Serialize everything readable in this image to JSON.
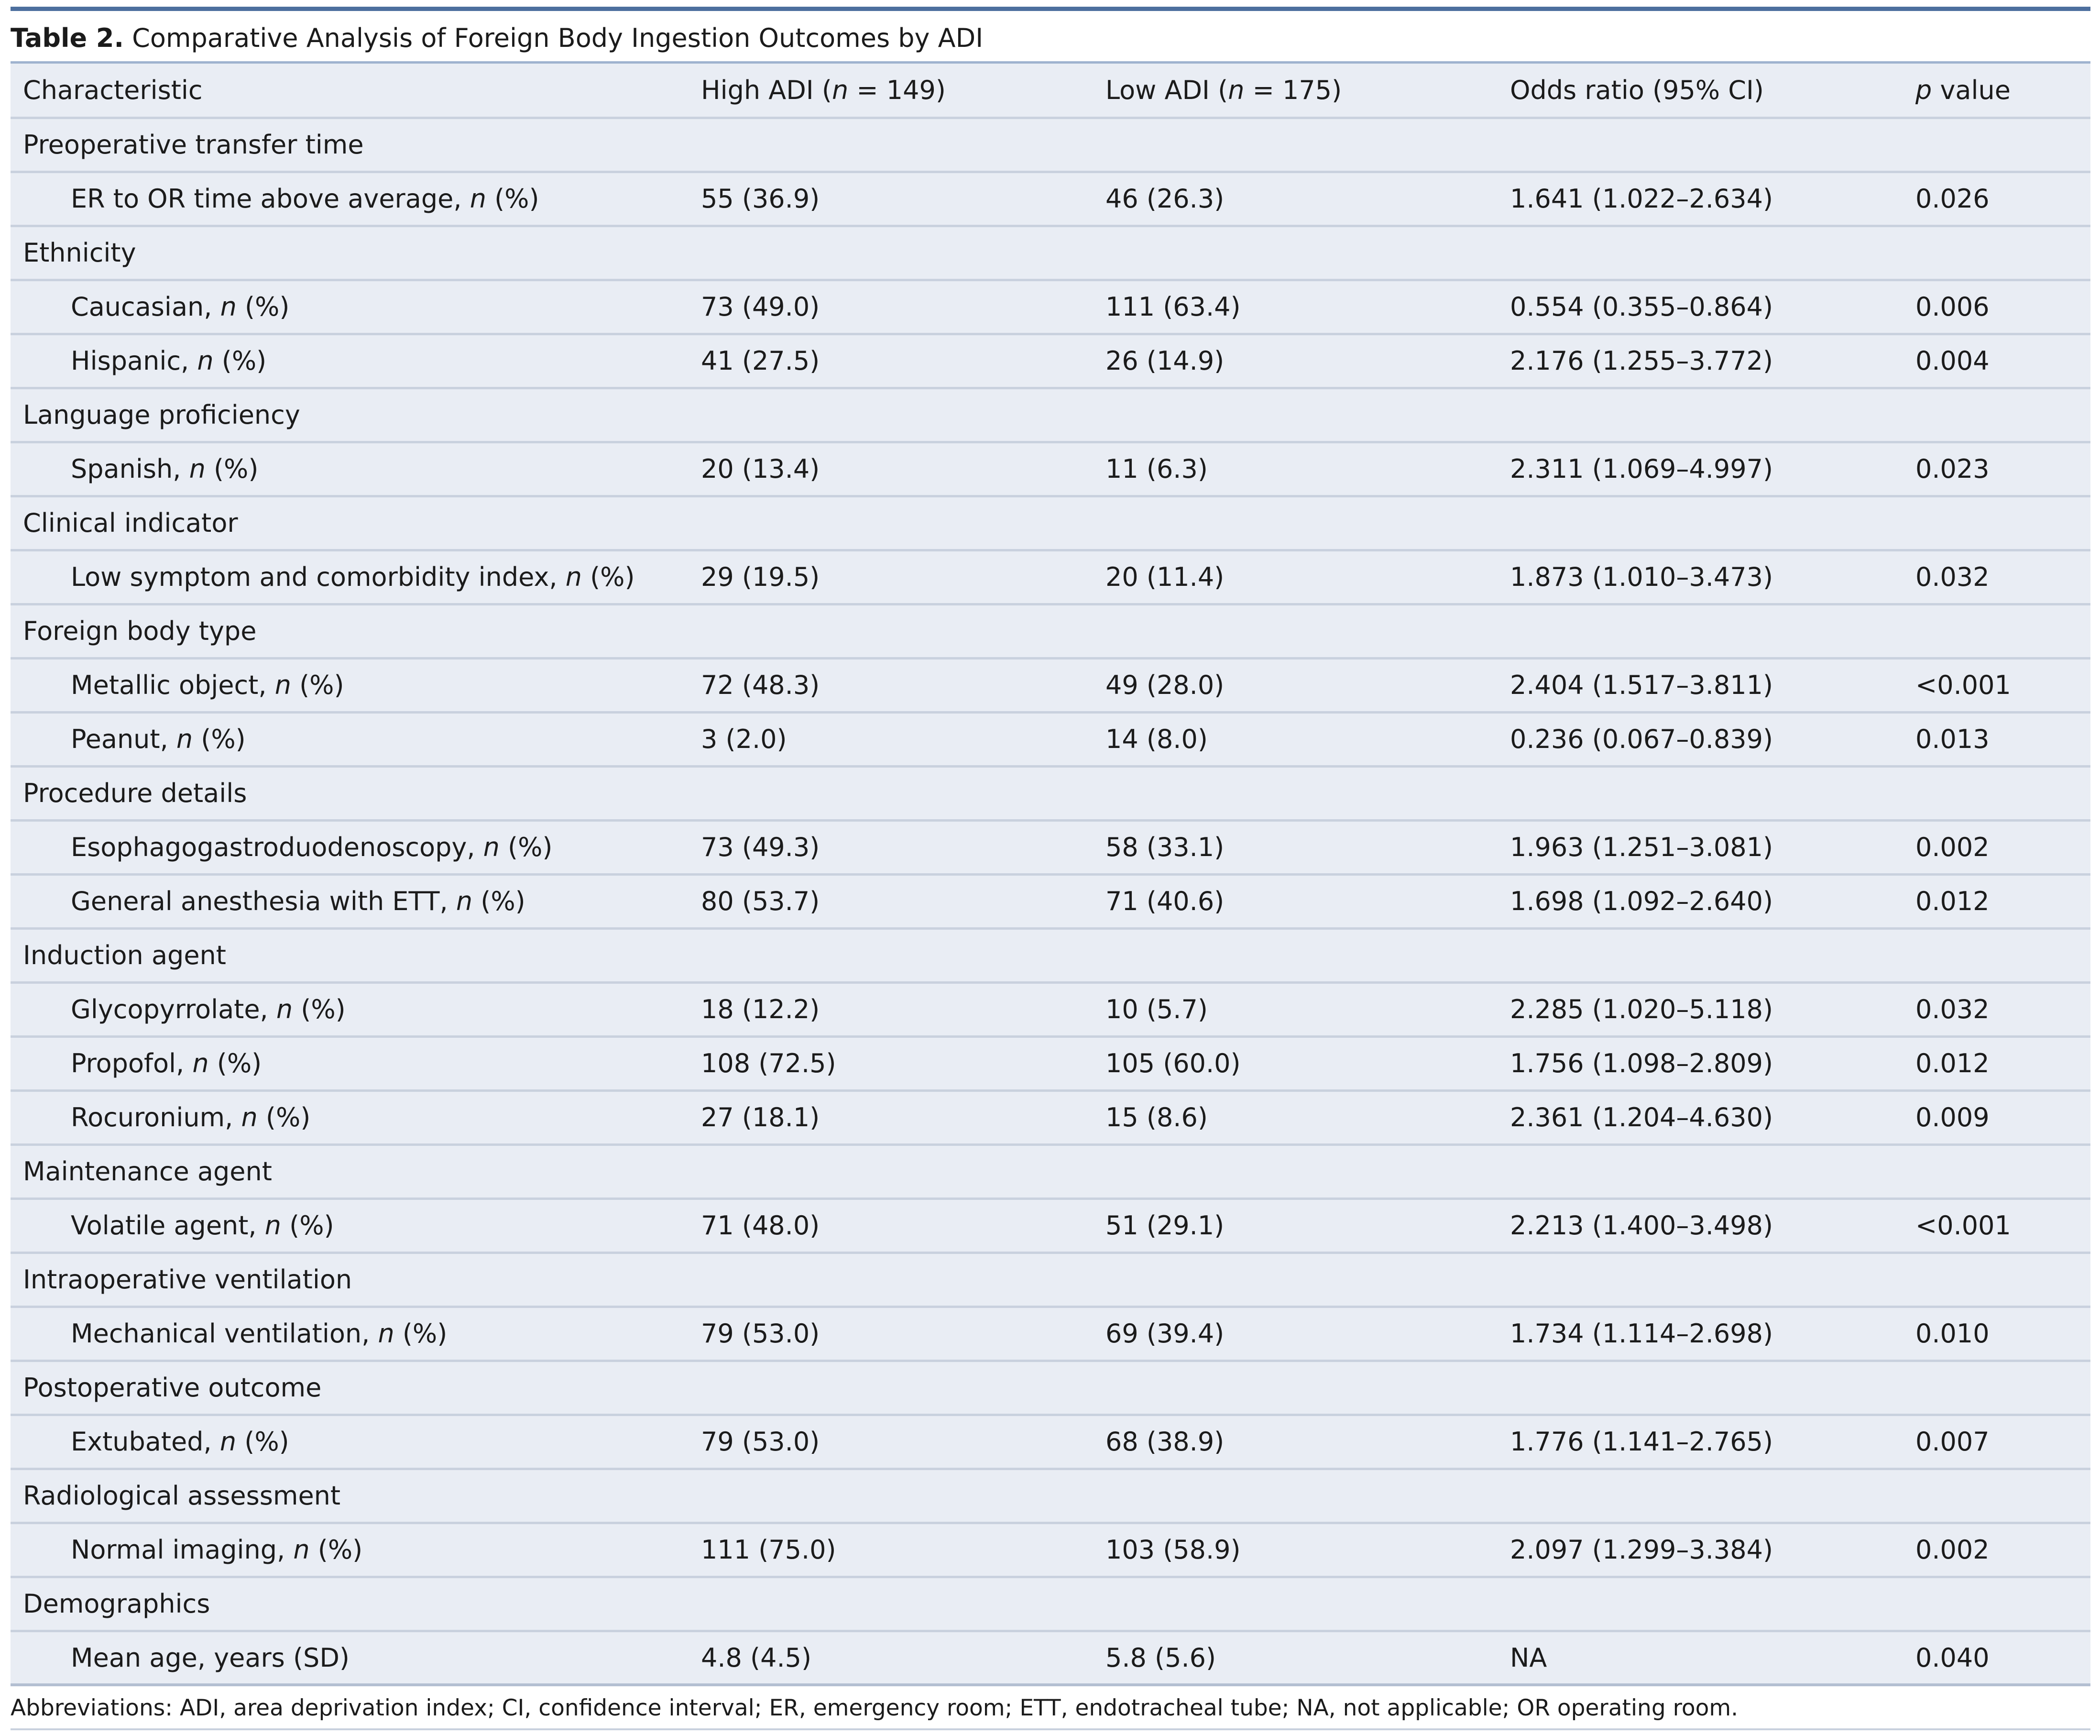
{
  "table": {
    "caption_label": "Table 2.",
    "caption_text": "Comparative Analysis of Foreign Body Ingestion Outcomes by ADI",
    "headers": [
      {
        "pre": "Characteristic",
        "it": "",
        "post": ""
      },
      {
        "pre": "High ADI (",
        "it": "n",
        "post": " = 149)"
      },
      {
        "pre": "Low ADI (",
        "it": "n",
        "post": " = 175)"
      },
      {
        "pre": "Odds ratio (95% CI)",
        "it": "",
        "post": ""
      },
      {
        "pre": "",
        "it": "p",
        "post": " value"
      }
    ],
    "rows": [
      {
        "kind": "group",
        "label": "Preoperative transfer time"
      },
      {
        "kind": "item",
        "pre": "ER to OR time above average, ",
        "it": "n",
        "post": " (%)",
        "high": "55 (36.9)",
        "low": "46 (26.3)",
        "or": "1.641 (1.022–2.634)",
        "p": "0.026"
      },
      {
        "kind": "group",
        "label": "Ethnicity"
      },
      {
        "kind": "item",
        "pre": "Caucasian, ",
        "it": "n",
        "post": " (%)",
        "high": "73 (49.0)",
        "low": "111 (63.4)",
        "or": "0.554 (0.355–0.864)",
        "p": "0.006"
      },
      {
        "kind": "item",
        "pre": "Hispanic, ",
        "it": "n",
        "post": " (%)",
        "high": "41 (27.5)",
        "low": "26 (14.9)",
        "or": "2.176 (1.255–3.772)",
        "p": "0.004"
      },
      {
        "kind": "group",
        "label": "Language proficiency"
      },
      {
        "kind": "item",
        "pre": "Spanish, ",
        "it": "n",
        "post": " (%)",
        "high": "20 (13.4)",
        "low": "11 (6.3)",
        "or": "2.311 (1.069–4.997)",
        "p": "0.023"
      },
      {
        "kind": "group",
        "label": "Clinical indicator"
      },
      {
        "kind": "item",
        "pre": "Low symptom and comorbidity index, ",
        "it": "n",
        "post": " (%)",
        "high": "29 (19.5)",
        "low": "20 (11.4)",
        "or": "1.873 (1.010–3.473)",
        "p": "0.032"
      },
      {
        "kind": "group",
        "label": "Foreign body type"
      },
      {
        "kind": "item",
        "pre": "Metallic object, ",
        "it": "n",
        "post": " (%)",
        "high": "72 (48.3)",
        "low": "49 (28.0)",
        "or": "2.404 (1.517–3.811)",
        "p": "<0.001"
      },
      {
        "kind": "item",
        "pre": "Peanut, ",
        "it": "n",
        "post": " (%)",
        "high": "3 (2.0)",
        "low": "14 (8.0)",
        "or": "0.236 (0.067–0.839)",
        "p": "0.013"
      },
      {
        "kind": "group",
        "label": "Procedure details"
      },
      {
        "kind": "item",
        "pre": "Esophagogastroduodenoscopy, ",
        "it": "n",
        "post": " (%)",
        "high": "73 (49.3)",
        "low": "58 (33.1)",
        "or": "1.963 (1.251–3.081)",
        "p": "0.002"
      },
      {
        "kind": "item",
        "pre": "General anesthesia with ETT, ",
        "it": "n",
        "post": " (%)",
        "high": "80 (53.7)",
        "low": "71 (40.6)",
        "or": "1.698 (1.092–2.640)",
        "p": "0.012"
      },
      {
        "kind": "group",
        "label": "Induction agent"
      },
      {
        "kind": "item",
        "pre": "Glycopyrrolate, ",
        "it": "n",
        "post": " (%)",
        "high": "18 (12.2)",
        "low": "10 (5.7)",
        "or": "2.285 (1.020–5.118)",
        "p": "0.032"
      },
      {
        "kind": "item",
        "pre": "Propofol, ",
        "it": "n",
        "post": " (%)",
        "high": "108 (72.5)",
        "low": "105 (60.0)",
        "or": "1.756 (1.098–2.809)",
        "p": "0.012"
      },
      {
        "kind": "item",
        "pre": "Rocuronium, ",
        "it": "n",
        "post": " (%)",
        "high": "27 (18.1)",
        "low": "15 (8.6)",
        "or": "2.361 (1.204–4.630)",
        "p": "0.009"
      },
      {
        "kind": "group",
        "label": "Maintenance agent"
      },
      {
        "kind": "item",
        "pre": "Volatile agent, ",
        "it": "n",
        "post": " (%)",
        "high": "71 (48.0)",
        "low": "51 (29.1)",
        "or": "2.213 (1.400–3.498)",
        "p": "<0.001"
      },
      {
        "kind": "group",
        "label": "Intraoperative ventilation"
      },
      {
        "kind": "item",
        "pre": "Mechanical ventilation, ",
        "it": "n",
        "post": " (%)",
        "high": "79 (53.0)",
        "low": "69 (39.4)",
        "or": "1.734 (1.114–2.698)",
        "p": "0.010"
      },
      {
        "kind": "group",
        "label": "Postoperative outcome"
      },
      {
        "kind": "item",
        "pre": "Extubated, ",
        "it": "n",
        "post": " (%)",
        "high": "79 (53.0)",
        "low": "68 (38.9)",
        "or": "1.776 (1.141–2.765)",
        "p": "0.007"
      },
      {
        "kind": "group",
        "label": "Radiological assessment"
      },
      {
        "kind": "item",
        "pre": "Normal imaging, ",
        "it": "n",
        "post": " (%)",
        "high": "111 (75.0)",
        "low": "103 (58.9)",
        "or": "2.097 (1.299–3.384)",
        "p": "0.002"
      },
      {
        "kind": "group",
        "label": "Demographics"
      },
      {
        "kind": "item",
        "pre": "Mean age, years (SD)",
        "it": "",
        "post": "",
        "high": "4.8 (4.5)",
        "low": "5.8 (5.6)",
        "or": "NA",
        "p": "0.040"
      }
    ],
    "footnote": "Abbreviations: ADI, area deprivation index; CI, confidence interval; ER, emergency room; ETT, endotracheal tube; NA, not applicable; OR operating room."
  },
  "colors": {
    "top_rule": "#4d6f9e",
    "row_background": "#e9edf4",
    "row_divider": "#c9d1de"
  }
}
